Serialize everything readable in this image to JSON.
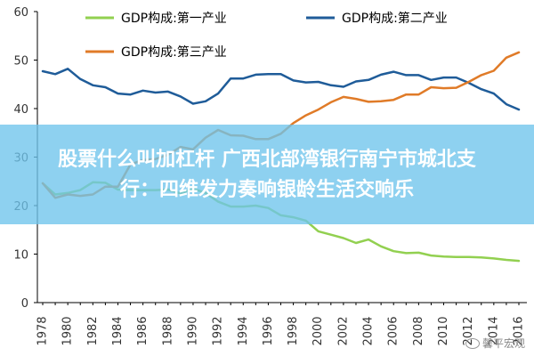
{
  "chart_data": {
    "type": "line",
    "title": "",
    "xlabel": "",
    "ylabel": "",
    "ylim": [
      0,
      60
    ],
    "yticks": [
      0,
      10,
      20,
      30,
      40,
      50,
      60
    ],
    "x": [
      1978,
      1979,
      1980,
      1981,
      1982,
      1983,
      1984,
      1985,
      1986,
      1987,
      1988,
      1989,
      1990,
      1991,
      1992,
      1993,
      1994,
      1995,
      1996,
      1997,
      1998,
      1999,
      2000,
      2001,
      2002,
      2003,
      2004,
      2005,
      2006,
      2007,
      2008,
      2009,
      2010,
      2011,
      2012,
      2013,
      2014,
      2015,
      2016
    ],
    "xticks": [
      1978,
      1980,
      1982,
      1984,
      1986,
      1988,
      1990,
      1992,
      1994,
      1996,
      1998,
      2000,
      2002,
      2004,
      2006,
      2008,
      2010,
      2012,
      2014,
      2016
    ],
    "legend_position": "top",
    "series": [
      {
        "name": "GDP构成:第一产业",
        "color": "#92d050",
        "values": [
          24.6,
          22.3,
          22.6,
          23.2,
          24.8,
          24.7,
          23.3,
          23.2,
          23.2,
          23.2,
          23.3,
          22.5,
          23.5,
          22.6,
          20.8,
          19.8,
          19.8,
          20.0,
          19.5,
          18.0,
          17.6,
          16.9,
          14.7,
          14.0,
          13.3,
          12.3,
          13.0,
          11.6,
          10.6,
          10.2,
          10.3,
          9.7,
          9.5,
          9.4,
          9.4,
          9.3,
          9.1,
          8.8,
          8.6
        ]
      },
      {
        "name": "GDP构成:第二产业",
        "color": "#1f5c99",
        "values": [
          47.7,
          47.1,
          48.2,
          46.1,
          44.8,
          44.4,
          43.1,
          42.9,
          43.7,
          43.3,
          43.5,
          42.5,
          41.0,
          41.5,
          43.1,
          46.2,
          46.2,
          47.0,
          47.1,
          47.1,
          45.8,
          45.4,
          45.5,
          44.8,
          44.5,
          45.6,
          45.9,
          47.0,
          47.6,
          46.9,
          46.9,
          45.9,
          46.4,
          46.4,
          45.3,
          44.0,
          43.1,
          40.9,
          39.8
        ]
      },
      {
        "name": "GDP构成:第三产业",
        "color": "#e07b28",
        "values": [
          24.6,
          21.6,
          22.3,
          22.0,
          22.3,
          23.9,
          23.9,
          28.5,
          29.4,
          29.6,
          30.5,
          32.1,
          31.6,
          34.0,
          35.6,
          34.5,
          34.4,
          33.7,
          33.7,
          34.8,
          37.0,
          38.6,
          39.8,
          41.3,
          42.4,
          42.0,
          41.4,
          41.5,
          41.8,
          42.9,
          42.9,
          44.4,
          44.2,
          44.3,
          45.5,
          46.9,
          47.8,
          50.5,
          51.6
        ]
      }
    ]
  },
  "banner_lines": [
    "股票什么叫加杠杆 广西北部湾银行南宁市城北支",
    "行：四维发力奏响银龄生活交响乐"
  ],
  "watermark": "馨平宏观",
  "colors": {
    "axis": "#000000",
    "tick_label": "#333333",
    "banner": "#6ec4ec"
  }
}
